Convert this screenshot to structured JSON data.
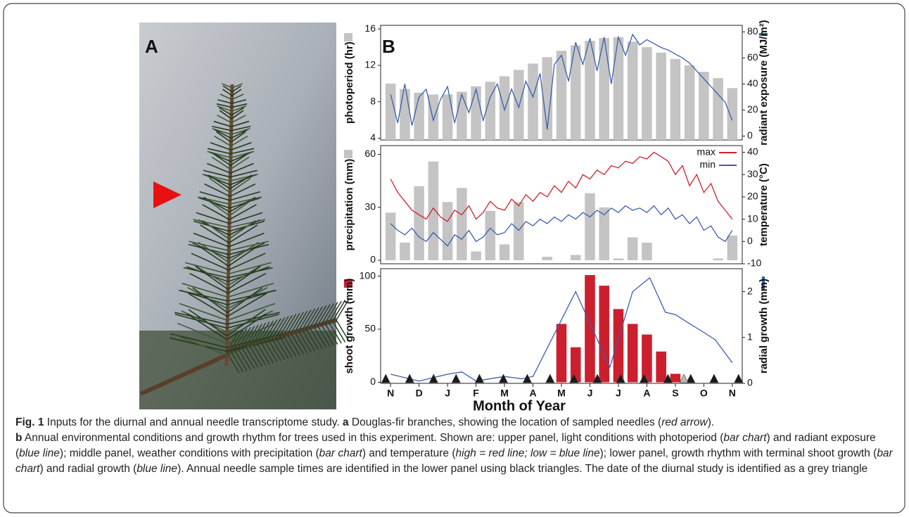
{
  "panel_a": {
    "label": "A"
  },
  "panel_b": {
    "label": "B"
  },
  "chart_data": [
    {
      "type": "bar_line",
      "ylabel": "photoperiod (hr)",
      "y2label": "radiant exposure (MJ/m²)",
      "xlim": [
        -0.35,
        12.35
      ],
      "ylim": [
        3.8,
        16.4
      ],
      "yticks": [
        4,
        8,
        12,
        16
      ],
      "y2lim": [
        -3,
        85
      ],
      "y2ticks": [
        0,
        20,
        40,
        60,
        80
      ],
      "series": [
        {
          "type": "bar",
          "color": "#c4c4c4",
          "x": [
            0,
            0.5,
            1,
            1.5,
            2,
            2.5,
            3,
            3.5,
            4,
            4.5,
            5,
            5.5,
            6,
            6.5,
            7,
            7.5,
            8,
            8.5,
            9,
            9.5,
            10,
            10.5,
            11,
            11.5,
            12
          ],
          "values": [
            10,
            9.4,
            9,
            8.8,
            8.8,
            9.1,
            9.7,
            10.2,
            10.8,
            11.5,
            12.2,
            12.9,
            13.6,
            14.2,
            14.7,
            15.0,
            15.1,
            14.6,
            14.0,
            13.4,
            12.7,
            12.0,
            11.3,
            10.6,
            9.5
          ]
        },
        {
          "type": "line",
          "color": "#3a5fad",
          "axis": "y2",
          "x": [
            0,
            0.25,
            0.5,
            0.75,
            1,
            1.25,
            1.5,
            1.75,
            2,
            2.25,
            2.5,
            2.75,
            3,
            3.25,
            3.5,
            3.75,
            4,
            4.25,
            4.5,
            4.75,
            5,
            5.25,
            5.5,
            5.75,
            6,
            6.25,
            6.5,
            6.75,
            7,
            7.25,
            7.5,
            7.75,
            8,
            8.25,
            8.5,
            8.75,
            9,
            9.25,
            9.5,
            9.75,
            10,
            10.25,
            10.5,
            10.75,
            11,
            11.25,
            11.5,
            11.75,
            12
          ],
          "values": [
            32,
            10,
            40,
            8,
            30,
            36,
            12,
            28,
            38,
            10,
            32,
            18,
            36,
            12,
            30,
            40,
            20,
            36,
            22,
            42,
            30,
            48,
            5,
            55,
            62,
            42,
            72,
            55,
            75,
            50,
            76,
            40,
            76,
            62,
            78,
            70,
            74,
            71,
            68,
            66,
            63,
            60,
            56,
            50,
            44,
            38,
            32,
            26,
            12
          ]
        }
      ]
    },
    {
      "type": "bar_line",
      "ylabel": "precipitation (mm)",
      "y2label": "temperature (°C)",
      "legend": "upper right",
      "xlim": [
        -0.35,
        12.35
      ],
      "ylim": [
        -2,
        65
      ],
      "yticks": [
        0,
        30,
        60
      ],
      "y2lim": [
        -10,
        43
      ],
      "y2ticks": [
        -10,
        0,
        10,
        20,
        30,
        40
      ],
      "series": [
        {
          "type": "bar",
          "color": "#c4c4c4",
          "x": [
            0,
            0.5,
            1,
            1.5,
            2,
            2.5,
            3,
            3.5,
            4,
            4.5,
            5,
            5.5,
            6,
            6.5,
            7,
            7.5,
            8,
            8.5,
            9,
            9.5,
            10,
            10.5,
            11,
            11.5,
            12
          ],
          "values": [
            27,
            10,
            42,
            56,
            33,
            41,
            5,
            28,
            9,
            33,
            0,
            2,
            0,
            3,
            38,
            30,
            1,
            13,
            10,
            0,
            0,
            0,
            0,
            1,
            14
          ]
        },
        {
          "type": "line",
          "name": "max",
          "color": "#d0202e",
          "axis": "y2",
          "x": [
            0,
            0.25,
            0.5,
            0.75,
            1,
            1.25,
            1.5,
            1.75,
            2,
            2.25,
            2.5,
            2.75,
            3,
            3.25,
            3.5,
            3.75,
            4,
            4.25,
            4.5,
            4.75,
            5,
            5.25,
            5.5,
            5.75,
            6,
            6.25,
            6.5,
            6.75,
            7,
            7.25,
            7.5,
            7.75,
            8,
            8.25,
            8.5,
            8.75,
            9,
            9.25,
            9.5,
            9.75,
            10,
            10.25,
            10.5,
            10.75,
            11,
            11.25,
            11.5,
            11.75,
            12
          ],
          "values": [
            28,
            22,
            18,
            14,
            12,
            10,
            15,
            11,
            9,
            14,
            12,
            16,
            10,
            13,
            18,
            15,
            14,
            19,
            16,
            21,
            18,
            22,
            20,
            25,
            22,
            27,
            24,
            30,
            28,
            32,
            30,
            34,
            33,
            36,
            35,
            38,
            37,
            40,
            38,
            36,
            30,
            34,
            25,
            30,
            22,
            26,
            18,
            14,
            10
          ]
        },
        {
          "type": "line",
          "name": "min",
          "color": "#3a5fad",
          "axis": "y2",
          "x": [
            0,
            0.25,
            0.5,
            0.75,
            1,
            1.25,
            1.5,
            1.75,
            2,
            2.25,
            2.5,
            2.75,
            3,
            3.25,
            3.5,
            3.75,
            4,
            4.25,
            4.5,
            4.75,
            5,
            5.25,
            5.5,
            5.75,
            6,
            6.25,
            6.5,
            6.75,
            7,
            7.25,
            7.5,
            7.75,
            8,
            8.25,
            8.5,
            8.75,
            9,
            9.25,
            9.5,
            9.75,
            10,
            10.25,
            10.5,
            10.75,
            11,
            11.25,
            11.5,
            11.75,
            12
          ],
          "values": [
            8,
            5,
            3,
            6,
            2,
            0,
            4,
            1,
            -2,
            3,
            1,
            5,
            0,
            2,
            6,
            3,
            4,
            8,
            5,
            9,
            7,
            10,
            8,
            11,
            9,
            12,
            10,
            13,
            11,
            14,
            12,
            15,
            13,
            16,
            14,
            15,
            13,
            16,
            12,
            15,
            10,
            12,
            8,
            11,
            5,
            7,
            2,
            0,
            5
          ]
        }
      ]
    },
    {
      "type": "bar_line",
      "ylabel": "shoot growth (mm)",
      "y2label": "radial growth (mm)",
      "xlabel": "Month of Year",
      "xlim": [
        -0.35,
        12.35
      ],
      "xticks": [
        {
          "value": 0,
          "label": "N"
        },
        {
          "value": 1,
          "label": "D"
        },
        {
          "value": 2,
          "label": "J"
        },
        {
          "value": 3,
          "label": "F"
        },
        {
          "value": 4,
          "label": "M"
        },
        {
          "value": 5,
          "label": "A"
        },
        {
          "value": 6,
          "label": "M"
        },
        {
          "value": 7,
          "label": "J"
        },
        {
          "value": 8,
          "label": "J"
        },
        {
          "value": 9,
          "label": "A"
        },
        {
          "value": 10,
          "label": "S"
        },
        {
          "value": 11,
          "label": "O"
        },
        {
          "value": 12,
          "label": "N"
        }
      ],
      "ylim": [
        -1,
        107
      ],
      "yticks": [
        0,
        50,
        100
      ],
      "y2lim": [
        0,
        2.5
      ],
      "y2ticks": [
        0,
        1,
        2
      ],
      "series": [
        {
          "type": "bar",
          "color": "#cc1f2e",
          "x": [
            6,
            6.5,
            7,
            7.5,
            8,
            8.5,
            9,
            9.5,
            10
          ],
          "values": [
            55,
            33,
            101,
            91,
            69,
            55,
            45,
            29,
            8
          ]
        },
        {
          "type": "line",
          "color": "#3a5fad",
          "axis": "y2",
          "x": [
            0,
            1,
            2,
            2.5,
            3,
            4,
            4.6,
            5,
            6.5,
            7.7,
            8.5,
            9.1,
            9.65,
            10,
            10.5,
            10.9,
            11.4,
            12
          ],
          "values": [
            0.2,
            0.05,
            0.2,
            0.25,
            0.05,
            0.15,
            0.1,
            0.15,
            2.0,
            0.35,
            2.0,
            2.3,
            1.55,
            1.5,
            1.3,
            1.15,
            0.95,
            0.45
          ]
        },
        {
          "type": "marker",
          "color": "#1a1a1a",
          "x": [
            -0.17,
            0.67,
            1.51,
            2.3,
            3.12,
            3.96,
            4.8,
            5.6,
            6.44,
            7.26,
            8.08,
            8.9,
            9.74,
            10.54,
            11.36,
            12.22
          ]
        },
        {
          "type": "marker",
          "color": "#b8b8b8",
          "x": [
            10.3
          ]
        }
      ]
    }
  ],
  "caption": {
    "parts": [
      "Fig. 1",
      " Inputs for the diurnal and annual needle transcriptome study. ",
      "a",
      " Douglas-fir branches, showing the location of sampled needles (",
      "red arrow",
      ").",
      "b",
      " Annual environmental conditions and growth rhythm for trees used in this experiment. Shown are: upper panel, light conditions with photoperiod (",
      "bar chart",
      ") and radiant exposure (",
      "blue line",
      "); middle panel, weather conditions with precipitation (",
      "bar chart",
      ") and temperature (",
      "high = red line; low = blue line",
      "); lower panel, growth rhythm with terminal shoot growth (",
      "bar chart",
      ") and radial growth (",
      "blue line",
      "). Annual needle sample times are identified in the lower panel using black triangles. The date of the diurnal study is identified as a grey triangle"
    ]
  }
}
